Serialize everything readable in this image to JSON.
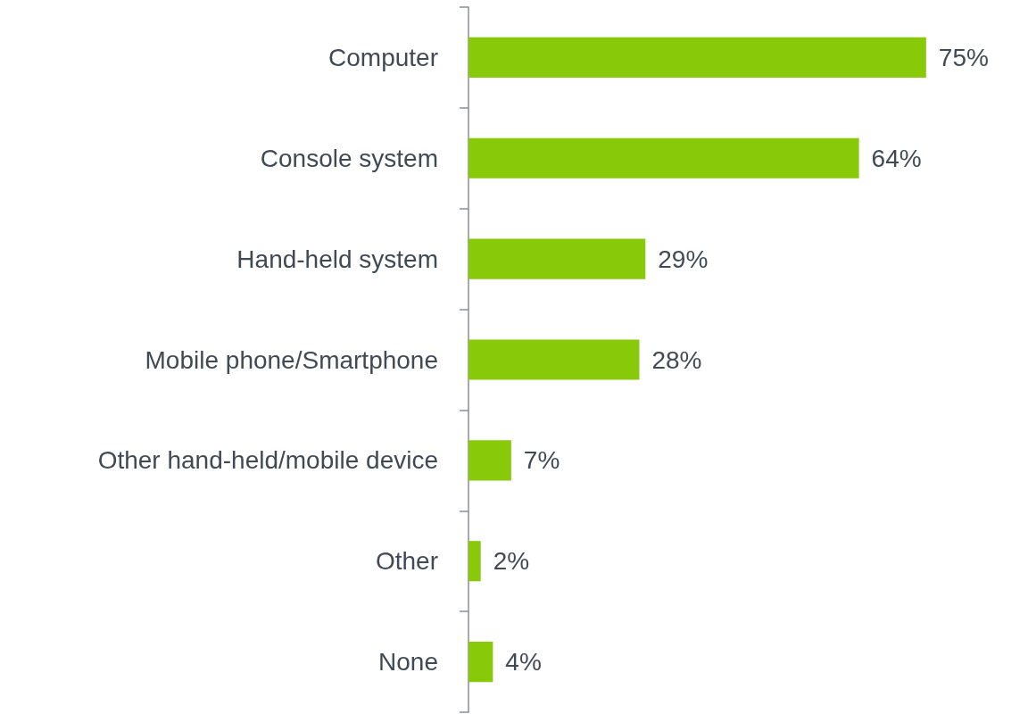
{
  "chart_data": {
    "type": "bar",
    "orientation": "horizontal",
    "categories": [
      "Computer",
      "Console system",
      "Hand-held system",
      "Mobile phone/Smartphone",
      "Other hand-held/mobile device",
      "Other",
      "None"
    ],
    "values": [
      75,
      64,
      29,
      28,
      7,
      2,
      4
    ],
    "value_labels": [
      "75%",
      "64%",
      "29%",
      "28%",
      "7%",
      "2%",
      "4%"
    ],
    "color": "#88c90a"
  }
}
